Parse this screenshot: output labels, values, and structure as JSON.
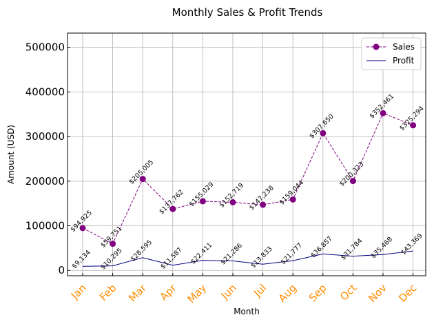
{
  "chart_data": {
    "type": "line",
    "title": "Monthly Sales & Profit Trends",
    "xlabel": "Month",
    "ylabel": "Amount (USD)",
    "categories": [
      "Jan",
      "Feb",
      "Mar",
      "Apr",
      "May",
      "Jun",
      "Jul",
      "Aug",
      "Sep",
      "Oct",
      "Nov",
      "Dec"
    ],
    "series": [
      {
        "name": "Sales",
        "values": [
          94925,
          59751,
          205005,
          137762,
          155029,
          152719,
          147238,
          159044,
          307650,
          200323,
          352461,
          325294
        ],
        "labels": [
          "$94,925",
          "$59,751",
          "$205,005",
          "$137,762",
          "$155,029",
          "$152,719",
          "$147,238",
          "$159,044",
          "$307,650",
          "$200,323",
          "$352,461",
          "$325,294"
        ],
        "color": "#800080",
        "line_style": "dashed",
        "marker": "circle"
      },
      {
        "name": "Profit",
        "values": [
          9134,
          10295,
          28595,
          11587,
          22411,
          21286,
          13833,
          21777,
          36857,
          31784,
          35468,
          43369
        ],
        "labels": [
          "$9,134",
          "$10,295",
          "$28,595",
          "$11,587",
          "$22,411",
          "$21,286",
          "$13,833",
          "$21,777",
          "$36,857",
          "$31,784",
          "$35,468",
          "$43,369"
        ],
        "color": "#000080",
        "line_style": "solid",
        "marker": "none"
      }
    ],
    "yticks": [
      0,
      100000,
      200000,
      300000,
      400000,
      500000
    ],
    "ytick_labels": [
      "0",
      "100000",
      "200000",
      "300000",
      "400000",
      "500000"
    ],
    "ylim": [
      -12000,
      532000
    ],
    "grid": true,
    "legend_position": "top-right",
    "xtick_color": "#ff8c00"
  }
}
